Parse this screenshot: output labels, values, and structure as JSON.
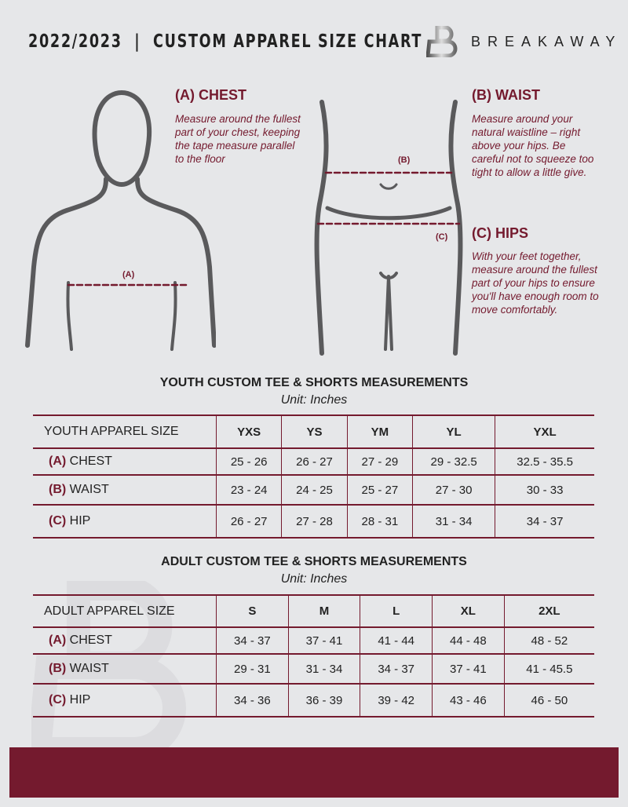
{
  "header": {
    "title": "2022/2023  |  CUSTOM APPAREL SIZE CHART",
    "brand": "BREAKAWAY"
  },
  "guide": {
    "chest": {
      "heading": "(A) CHEST",
      "text": "Measure around the fullest part of your chest, keeping the tape measure parallel to the floor",
      "marker": "(A)"
    },
    "waist": {
      "heading": "(B) WAIST",
      "text": "Measure around your natural waistline – right above your hips. Be careful not to squeeze too tight to allow a little give.",
      "marker": "(B)"
    },
    "hips": {
      "heading": "(C) HIPS",
      "text": "With your feet together, measure around the fullest part of your hips to ensure you'll have enough room to move comfortably.",
      "marker": "(C)"
    }
  },
  "youth": {
    "title": "YOUTH CUSTOM TEE & SHORTS MEASUREMENTS",
    "unit": "Unit: Inches",
    "label": "YOUTH APPAREL SIZE",
    "sizes": [
      "YXS",
      "YS",
      "YM",
      "YL",
      "YXL"
    ],
    "rows": [
      {
        "code": "(A)",
        "name": "CHEST",
        "values": [
          "25 - 26",
          "26 - 27",
          "27 - 29",
          "29 - 32.5",
          "32.5 - 35.5"
        ]
      },
      {
        "code": "(B)",
        "name": "WAIST",
        "values": [
          "23 - 24",
          "24 - 25",
          "25 - 27",
          "27 - 30",
          "30 - 33"
        ]
      },
      {
        "code": "(C)",
        "name": "HIP",
        "values": [
          "26 - 27",
          "27 - 28",
          "28 - 31",
          "31 - 34",
          "34 - 37"
        ]
      }
    ]
  },
  "adult": {
    "title": "ADULT CUSTOM TEE & SHORTS MEASUREMENTS",
    "unit": "Unit: Inches",
    "label": "ADULT APPAREL SIZE",
    "sizes": [
      "S",
      "M",
      "L",
      "XL",
      "2XL"
    ],
    "rows": [
      {
        "code": "(A)",
        "name": "CHEST",
        "values": [
          "34 - 37",
          "37 - 41",
          "41 - 44",
          "44 - 48",
          "48 - 52"
        ]
      },
      {
        "code": "(B)",
        "name": "WAIST",
        "values": [
          "29 - 31",
          "31 - 34",
          "34 - 37",
          "37 - 41",
          "41 - 45.5"
        ]
      },
      {
        "code": "(C)",
        "name": "HIP",
        "values": [
          "34 - 36",
          "36 - 39",
          "39 - 42",
          "43 - 46",
          "46 - 50"
        ]
      }
    ]
  },
  "colors": {
    "accent": "#741a2e",
    "background": "#e6e7e9"
  }
}
